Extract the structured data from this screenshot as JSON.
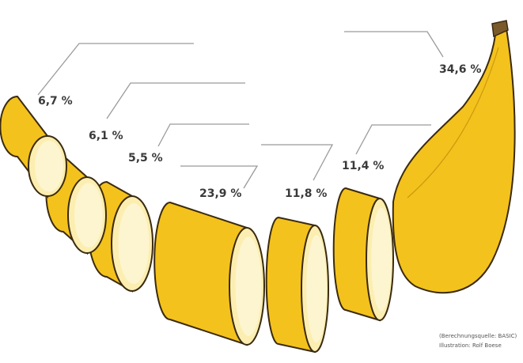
{
  "chart_data": {
    "type": "banana",
    "values": [
      6.7,
      6.1,
      5.5,
      23.9,
      11.8,
      11.4,
      34.6
    ],
    "value_labels": [
      "6,7 %",
      "6,1 %",
      "5,5 %",
      "23,9 %",
      "11,8 %",
      "11,4 %",
      "34,6 %"
    ],
    "color": "#f4c21c",
    "source": "(Berechnungsquelle: BASIC)",
    "credit": "Illustration: Rolf Boese"
  }
}
